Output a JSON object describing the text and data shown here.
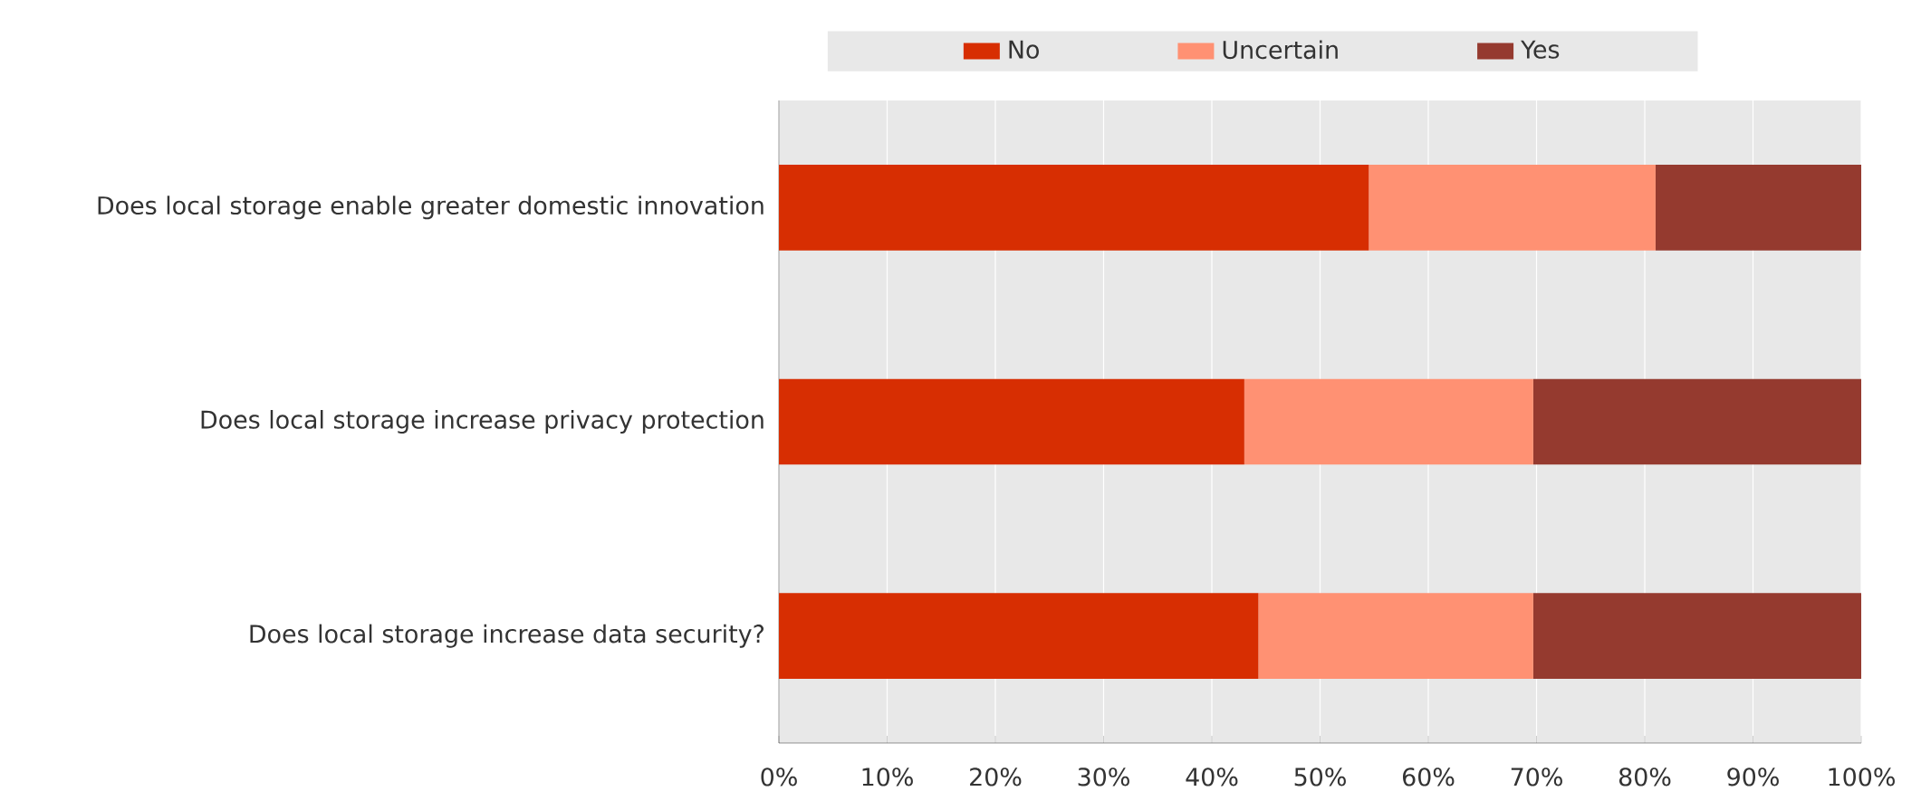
{
  "chart_data": {
    "type": "bar",
    "orientation": "horizontal",
    "stacked": true,
    "categories": [
      "Does local storage enable greater domestic innovation",
      "Does local storage increase privacy protection",
      "Does local storage increase data security?"
    ],
    "series": [
      {
        "name": "No",
        "color": "#d72e02",
        "values": [
          54.5,
          43.0,
          44.3
        ]
      },
      {
        "name": "Uncertain",
        "color": "#ff9173",
        "values": [
          26.5,
          26.7,
          25.4
        ]
      },
      {
        "name": "Yes",
        "color": "#953a2f",
        "values": [
          19.0,
          30.3,
          30.3
        ]
      }
    ],
    "xlim": [
      0,
      100
    ],
    "xticks": [
      {
        "value": 0,
        "label": "0%"
      },
      {
        "value": 10,
        "label": "10%"
      },
      {
        "value": 20,
        "label": "20%"
      },
      {
        "value": 30,
        "label": "30%"
      },
      {
        "value": 40,
        "label": "40%"
      },
      {
        "value": 50,
        "label": "50%"
      },
      {
        "value": 60,
        "label": "60%"
      },
      {
        "value": 70,
        "label": "70%"
      },
      {
        "value": 80,
        "label": "80%"
      },
      {
        "value": 90,
        "label": "90%"
      },
      {
        "value": 100,
        "label": "100%"
      }
    ],
    "grid": "x",
    "legend": "top"
  }
}
